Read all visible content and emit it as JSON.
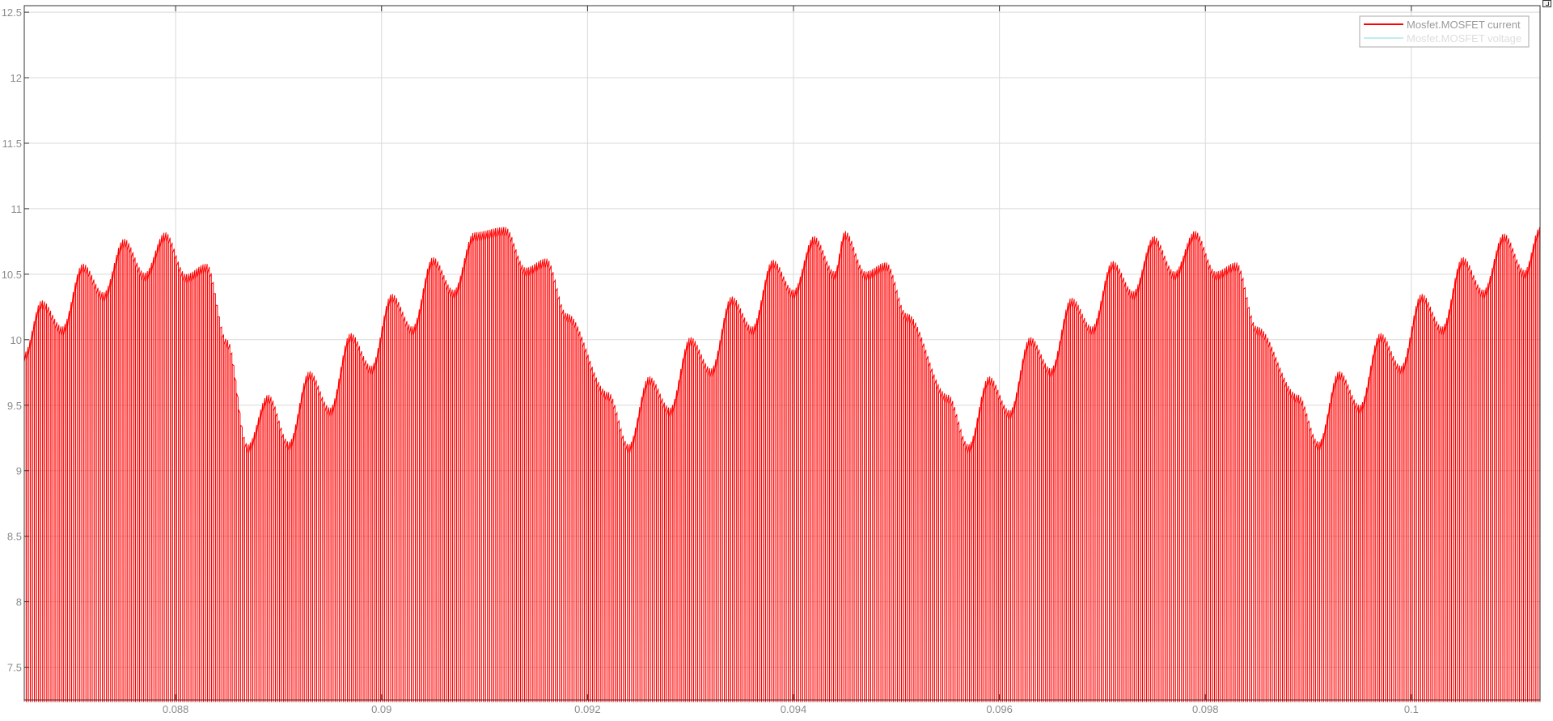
{
  "chart_data": {
    "type": "line",
    "title": "",
    "xlabel": "",
    "ylabel": "",
    "xlim": [
      0.08653,
      0.10125
    ],
    "ylim": [
      7.25,
      12.55
    ],
    "x_ticks": [
      0.088,
      0.09,
      0.092,
      0.094,
      0.096,
      0.098,
      0.1
    ],
    "x_tick_labels": [
      "0.088",
      "0.09",
      "0.092",
      "0.094",
      "0.096",
      "0.098",
      "0.1"
    ],
    "y_ticks": [
      7.5,
      8,
      8.5,
      9,
      9.5,
      10,
      10.5,
      11,
      11.5,
      12,
      12.5
    ],
    "y_tick_labels": [
      "7.5",
      "8",
      "8.5",
      "9",
      "9.5",
      "10",
      "10.5",
      "11",
      "11.5",
      "12",
      "12.5"
    ],
    "grid": true,
    "legend_position": "top-right",
    "series": [
      {
        "name": "Mosfet.MOSFET current",
        "color": "#ff0000",
        "switching_period": 2e-05,
        "envelope_peaks": {
          "x": [
            0.08653,
            0.0867,
            0.0871,
            0.0875,
            0.0879,
            0.0883,
            0.0885,
            0.0889,
            0.0893,
            0.0897,
            0.0901,
            0.0905,
            0.0909,
            0.0912,
            0.0916,
            0.0918,
            0.0922,
            0.0926,
            0.093,
            0.0934,
            0.0938,
            0.0942,
            0.0945,
            0.0949,
            0.0951,
            0.0955,
            0.0959,
            0.0963,
            0.0967,
            0.0971,
            0.0975,
            0.0979,
            0.0983,
            0.0985,
            0.0989,
            0.0993,
            0.0997,
            0.1001,
            0.1005,
            0.1009,
            0.10125
          ],
          "y": [
            9.9,
            10.3,
            10.58,
            10.77,
            10.82,
            10.58,
            10.0,
            9.58,
            9.76,
            10.05,
            10.35,
            10.63,
            10.82,
            10.86,
            10.62,
            10.2,
            9.6,
            9.72,
            10.02,
            10.33,
            10.61,
            10.79,
            10.83,
            10.59,
            10.2,
            9.58,
            9.72,
            10.02,
            10.32,
            10.6,
            10.79,
            10.83,
            10.59,
            10.1,
            9.58,
            9.76,
            10.05,
            10.35,
            10.63,
            10.81,
            10.86
          ]
        },
        "envelope_valleys": {
          "x": [
            0.0869,
            0.0873,
            0.0877,
            0.0881,
            0.0887,
            0.0891,
            0.0895,
            0.0899,
            0.0903,
            0.0907,
            0.0914,
            0.0924,
            0.0928,
            0.0932,
            0.0936,
            0.094,
            0.0944,
            0.0947,
            0.0957,
            0.0961,
            0.0965,
            0.0969,
            0.0973,
            0.0977,
            0.0981,
            0.0991,
            0.0995,
            0.0999,
            0.1003,
            0.1007,
            0.1011
          ],
          "y": [
            10.1,
            10.36,
            10.51,
            10.5,
            9.2,
            9.22,
            9.48,
            9.8,
            10.1,
            10.38,
            10.55,
            9.2,
            9.48,
            9.78,
            10.1,
            10.38,
            10.52,
            10.52,
            9.2,
            9.46,
            9.78,
            10.1,
            10.37,
            10.52,
            10.52,
            9.22,
            9.5,
            9.8,
            10.1,
            10.38,
            10.53
          ]
        },
        "min_current": 7.25
      },
      {
        "name": "Mosfet.MOSFET voltage",
        "color": "#7fdede",
        "values_in_view": false
      }
    ]
  },
  "ui": {
    "expand_button_icon": "expand-icon"
  }
}
